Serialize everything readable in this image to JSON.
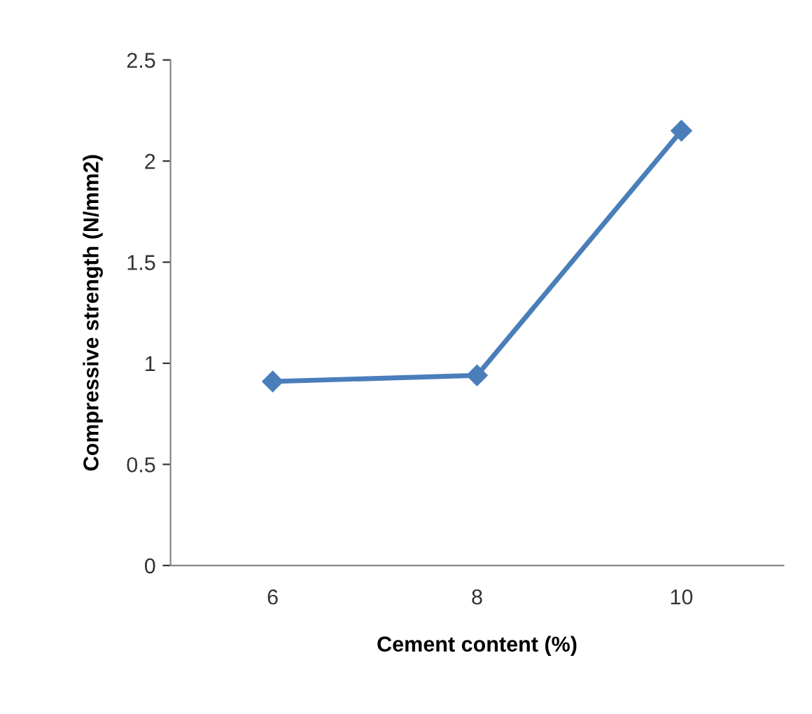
{
  "chart_data": {
    "type": "line",
    "xlabel": "Cement content (%)",
    "ylabel": "Compressive strength (N/mm2)",
    "categories": [
      "6",
      "8",
      "10"
    ],
    "series": [
      {
        "color": "#4a7ebb",
        "values": [
          0.91,
          0.94,
          2.15
        ]
      }
    ],
    "ylim": [
      0,
      2.5
    ],
    "yticks": [
      0,
      0.5,
      1,
      1.5,
      2,
      2.5
    ],
    "grid": false,
    "legend": false,
    "marker": "diamond",
    "line_style": "solid"
  }
}
